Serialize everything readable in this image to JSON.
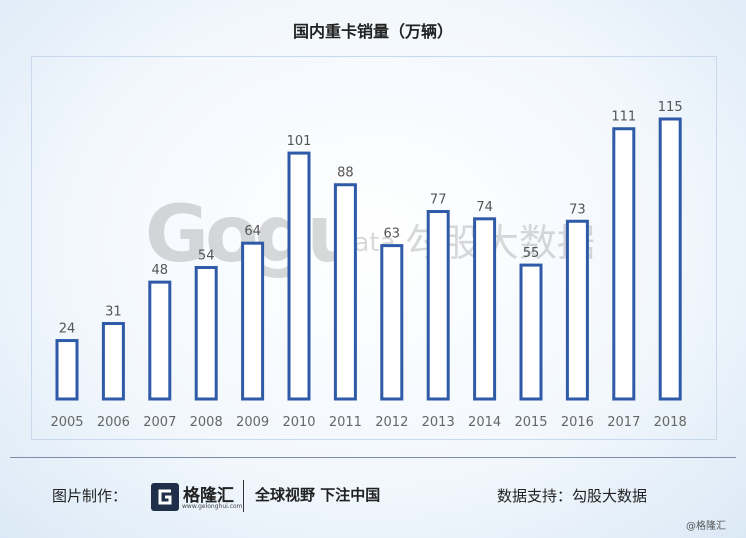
{
  "chart_data": {
    "type": "bar",
    "title": "国内重卡销量（万辆）",
    "categories": [
      "2005",
      "2006",
      "2007",
      "2008",
      "2009",
      "2010",
      "2011",
      "2012",
      "2013",
      "2014",
      "2015",
      "2016",
      "2017",
      "2018"
    ],
    "values": [
      24,
      31,
      48,
      54,
      64,
      101,
      88,
      63,
      77,
      74,
      55,
      73,
      111,
      115
    ],
    "ylim": [
      0,
      125
    ],
    "xlabel": "",
    "ylabel": "",
    "grid": false,
    "bar_style": "outlined",
    "colors": {
      "bar_stroke": "#2f5aa8",
      "bar_fill": "#ffffff",
      "label": "#555555",
      "tick": "#666666"
    }
  },
  "watermark": {
    "logo": "Gogu",
    "sub": "data",
    "cn": "勾股大数据"
  },
  "footer": {
    "left_label": "图片制作：",
    "brand_icon": "g-logo-icon",
    "brand_name": "格隆汇",
    "brand_url": "www.gelonghui.com",
    "slogan": "全球视野 下注中国",
    "right_label": "数据支持：勾股大数据",
    "credit": "@格隆汇"
  }
}
